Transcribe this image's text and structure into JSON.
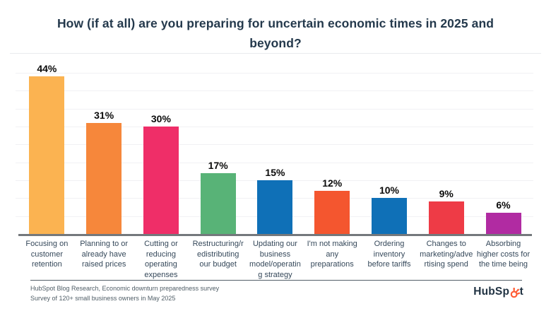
{
  "header": {
    "title": "How (if at all) are you preparing for uncertain economic times in 2025 and beyond?"
  },
  "chart_data": {
    "type": "bar",
    "title": "How (if at all) are you preparing for uncertain economic times in 2025 and beyond?",
    "categories": [
      "Focusing on customer retention",
      "Planning to or already have raised prices",
      "Cutting or reducing operating expenses",
      "Restructuring/redistributing our budget",
      "Updating our business model/operating strategy",
      "I'm not making any preparations",
      "Ordering inventory before tariffs",
      "Changes to marketing/advertising spend",
      "Absorbing higher costs for the time being"
    ],
    "category_display_lines": [
      "Focusing on\ncustomer\nretention",
      "Planning to or\nalready have\nraised prices",
      "Cutting or\nreducing\noperating\nexpenses",
      "Restructuring/r\nedistributing\nour budget",
      "Updating our\nbusiness\nmodel/operatin\ng strategy",
      "I'm not making\nany\npreparations",
      "Ordering\ninventory\nbefore tariffs",
      "Changes to\nmarketing/adve\nrtising spend",
      "Absorbing\nhigher costs for\nthe time being"
    ],
    "values": [
      44,
      31,
      30,
      17,
      15,
      12,
      10,
      9,
      6
    ],
    "unit": "%",
    "bar_colors": [
      "#FBB351",
      "#F6873B",
      "#EF2E68",
      "#58B377",
      "#0F70B7",
      "#F4562F",
      "#0F70B7",
      "#EE3B46",
      "#B12BA2"
    ],
    "xlabel": "",
    "ylabel": "",
    "ylim": [
      0,
      48
    ],
    "gridline_step": 5,
    "gridline_max": 45,
    "grid": true,
    "legend": "none",
    "value_labels_shown": true
  },
  "footer": {
    "source_line1": "HubSpot Blog Research, Economic downturn preparedness survey",
    "source_line2": "Survey of 120+ small business owners in May 2025"
  },
  "brand": {
    "name": "HubSpot",
    "name_pre": "HubSp",
    "name_post": "t",
    "sprocket_color": "#FF5C35",
    "wordmark_color": "#213343"
  },
  "colors": {
    "title_text": "#24394c",
    "axis_line": "#74787c",
    "gridline": "#f1f1f4",
    "category_text": "#35485a",
    "value_text": "#0b0b0b",
    "footer_text": "#4f5d66"
  }
}
